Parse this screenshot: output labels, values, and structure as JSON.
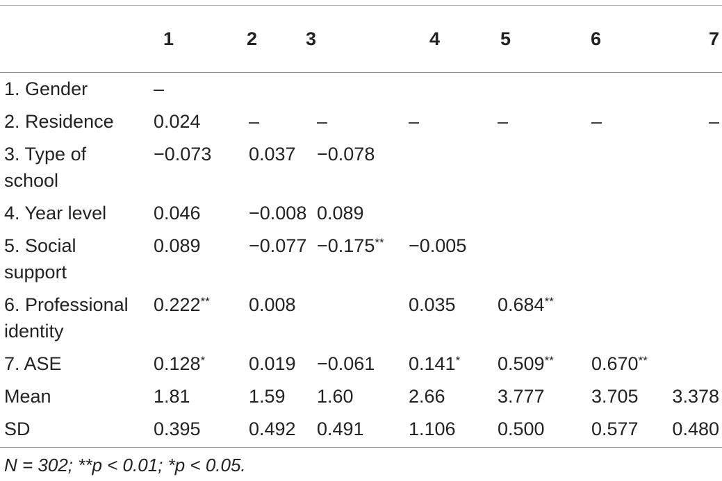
{
  "table": {
    "columns": [
      "",
      "1",
      "2",
      "3",
      "4",
      "5",
      "6",
      "7"
    ],
    "rows": [
      {
        "label": "1. Gender",
        "cells": [
          "–",
          "",
          "",
          "",
          "",
          "",
          ""
        ]
      },
      {
        "label": "2. Residence",
        "cells": [
          "0.024",
          "–",
          "–",
          "–",
          "–",
          "–",
          "–"
        ]
      },
      {
        "label": "3. Type of school",
        "cells": [
          "−0.073",
          "0.037",
          "−0.078",
          "",
          "",
          "",
          ""
        ]
      },
      {
        "label": "4. Year level",
        "cells": [
          "0.046",
          "−0.008",
          "0.089",
          "",
          "",
          "",
          ""
        ]
      },
      {
        "label": "5. Social support",
        "cells": [
          "0.089",
          "−0.077",
          "−0.175**",
          "−0.005",
          "",
          "",
          ""
        ]
      },
      {
        "label": "6. Professional identity",
        "cells": [
          "0.222**",
          "0.008",
          "",
          "0.035",
          "0.684**",
          "",
          ""
        ]
      },
      {
        "label": "7. ASE",
        "cells": [
          "0.128*",
          "0.019",
          "−0.061",
          "0.141*",
          "0.509**",
          "0.670**",
          ""
        ]
      },
      {
        "label": "Mean",
        "cells": [
          "1.81",
          "1.59",
          "1.60",
          "2.66",
          "3.777",
          "3.705",
          "3.378"
        ]
      },
      {
        "label": "SD",
        "cells": [
          "0.395",
          "0.492",
          "0.491",
          "1.106",
          "0.500",
          "0.577",
          "0.480"
        ]
      }
    ]
  },
  "footnote": "N = 302; **p < 0.01; *p < 0.05."
}
